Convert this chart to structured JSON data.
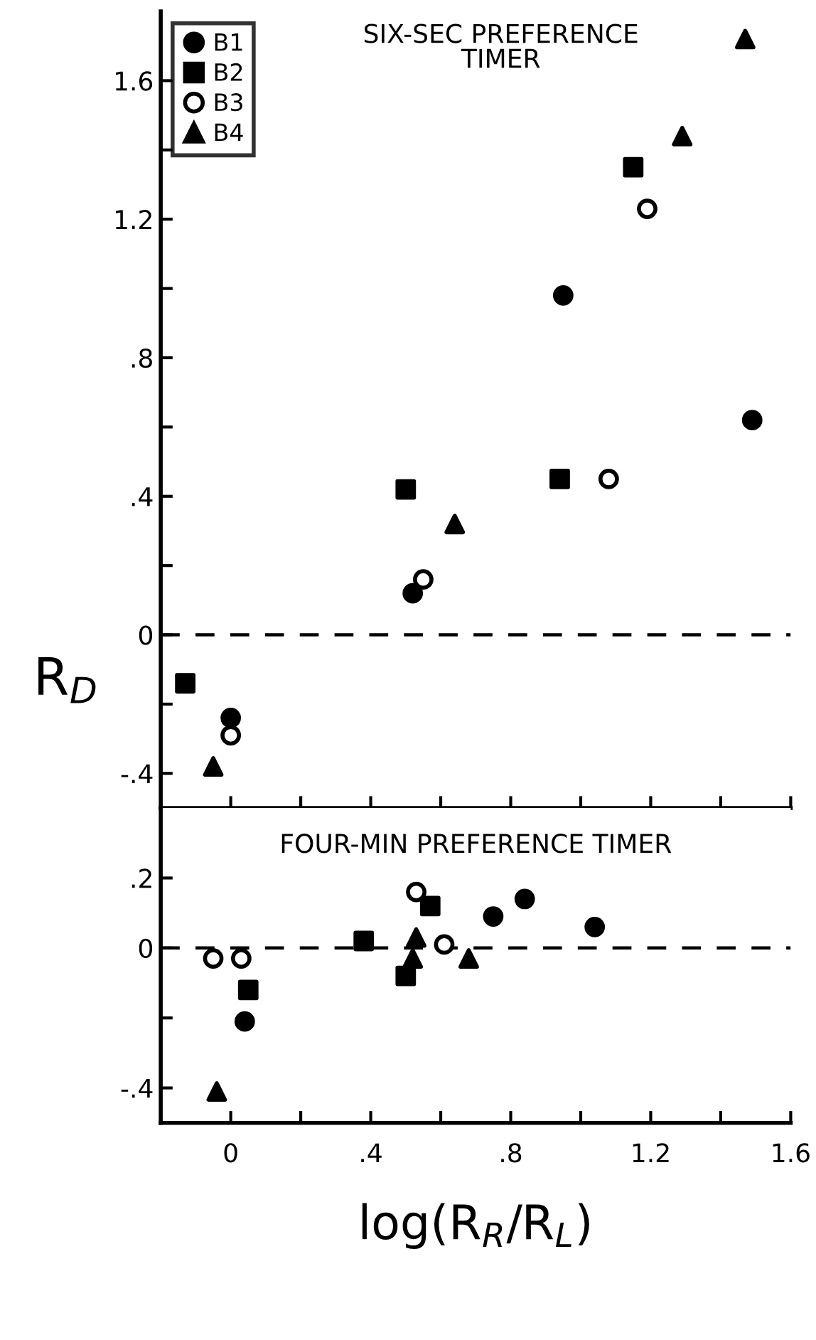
{
  "chart_data": [
    {
      "type": "scatter",
      "title": "SIX-SEC PREFERENCE\nTIMER",
      "ylabel": "R$_{D}$",
      "legend": "top left",
      "tick_labels": "y",
      "grid": false,
      "xlim": [
        -0.2,
        1.6
      ],
      "ylim": [
        -0.5,
        1.8
      ],
      "xticks": [
        {
          "value": 0,
          "label": null
        },
        {
          "value": 0.2,
          "label": null
        },
        {
          "value": 0.4,
          "label": null
        },
        {
          "value": 0.6,
          "label": null
        },
        {
          "value": 0.8,
          "label": null
        },
        {
          "value": 1.0,
          "label": null
        },
        {
          "value": 1.2,
          "label": null
        },
        {
          "value": 1.4,
          "label": null
        },
        {
          "value": 1.6,
          "label": null
        }
      ],
      "yticks": [
        {
          "value": -0.4,
          "label": "-.4"
        },
        {
          "value": -0.2,
          "label": null
        },
        0,
        {
          "value": 0.2,
          "label": null
        },
        {
          "value": 0.4,
          "label": ".4"
        },
        {
          "value": 0.6,
          "label": null
        },
        {
          "value": 0.8,
          "label": ".8"
        },
        {
          "value": 1.0,
          "label": null
        },
        {
          "value": 1.2,
          "label": "1.2"
        },
        {
          "value": 1.4,
          "label": null
        },
        {
          "value": 1.6,
          "label": "1.6"
        }
      ],
      "ref_lines": [
        {
          "axis": "y",
          "value": 0,
          "color": "#000000",
          "line_style": "dashed"
        }
      ],
      "series": [
        {
          "name": "B1",
          "color": "#000000",
          "marker": "circle",
          "x": [
            0,
            0.52,
            0.95,
            1.49
          ],
          "values": [
            -0.24,
            0.12,
            0.98,
            0.62
          ]
        },
        {
          "name": "B2",
          "color": "#000000",
          "marker": "square",
          "x": [
            -0.13,
            0.5,
            0.94,
            1.15
          ],
          "values": [
            -0.14,
            0.42,
            0.45,
            1.35
          ]
        },
        {
          "name": "B3",
          "color": "#ffffff",
          "marker": "circle",
          "x": [
            0,
            0.55,
            1.08,
            1.19
          ],
          "values": [
            -0.29,
            0.16,
            0.45,
            1.23
          ]
        },
        {
          "name": "B4",
          "color": "#000000",
          "marker": "triangle",
          "x": [
            -0.05,
            0.64,
            1.29,
            1.47
          ],
          "values": [
            -0.38,
            0.32,
            1.44,
            1.72
          ]
        }
      ]
    },
    {
      "type": "scatter",
      "title": "FOUR-MIN PREFERENCE TIMER",
      "xlabel": "log(R$_{R}$/R$_{L}$)",
      "grid": false,
      "xlim": [
        -0.2,
        1.6
      ],
      "ylim": [
        -0.5,
        0.4
      ],
      "xticks": [
        0,
        {
          "value": 0.2,
          "label": null
        },
        {
          "value": 0.4,
          "label": ".4"
        },
        {
          "value": 0.6,
          "label": null
        },
        {
          "value": 0.8,
          "label": ".8"
        },
        {
          "value": 1.0,
          "label": null
        },
        {
          "value": 1.2,
          "label": "1.2"
        },
        {
          "value": 1.4,
          "label": null
        },
        {
          "value": 1.6,
          "label": "1.6"
        }
      ],
      "yticks": [
        {
          "value": -0.4,
          "label": "-.4"
        },
        {
          "value": -0.2,
          "label": null
        },
        0,
        {
          "value": 0.2,
          "label": ".2"
        }
      ],
      "ref_lines": [
        {
          "axis": "y",
          "value": 0,
          "color": "#000000",
          "line_style": "dashed"
        }
      ],
      "series": [
        {
          "color": "#000000",
          "marker": "circle",
          "x": [
            0.04,
            0.75,
            0.84,
            1.04
          ],
          "values": [
            -0.21,
            0.09,
            0.14,
            0.06
          ]
        },
        {
          "color": "#000000",
          "marker": "square",
          "x": [
            0.05,
            0.38,
            0.5,
            0.57
          ],
          "values": [
            -0.12,
            0.02,
            -0.08,
            0.12
          ]
        },
        {
          "color": "#ffffff",
          "marker": "circle",
          "x": [
            -0.05,
            0.03,
            0.53,
            0.61
          ],
          "values": [
            -0.03,
            -0.03,
            0.16,
            0.01
          ]
        },
        {
          "color": "#000000",
          "marker": "triangle",
          "x": [
            -0.04,
            0.52,
            0.53,
            0.68
          ],
          "values": [
            -0.41,
            -0.03,
            0.03,
            -0.03
          ]
        }
      ]
    }
  ]
}
